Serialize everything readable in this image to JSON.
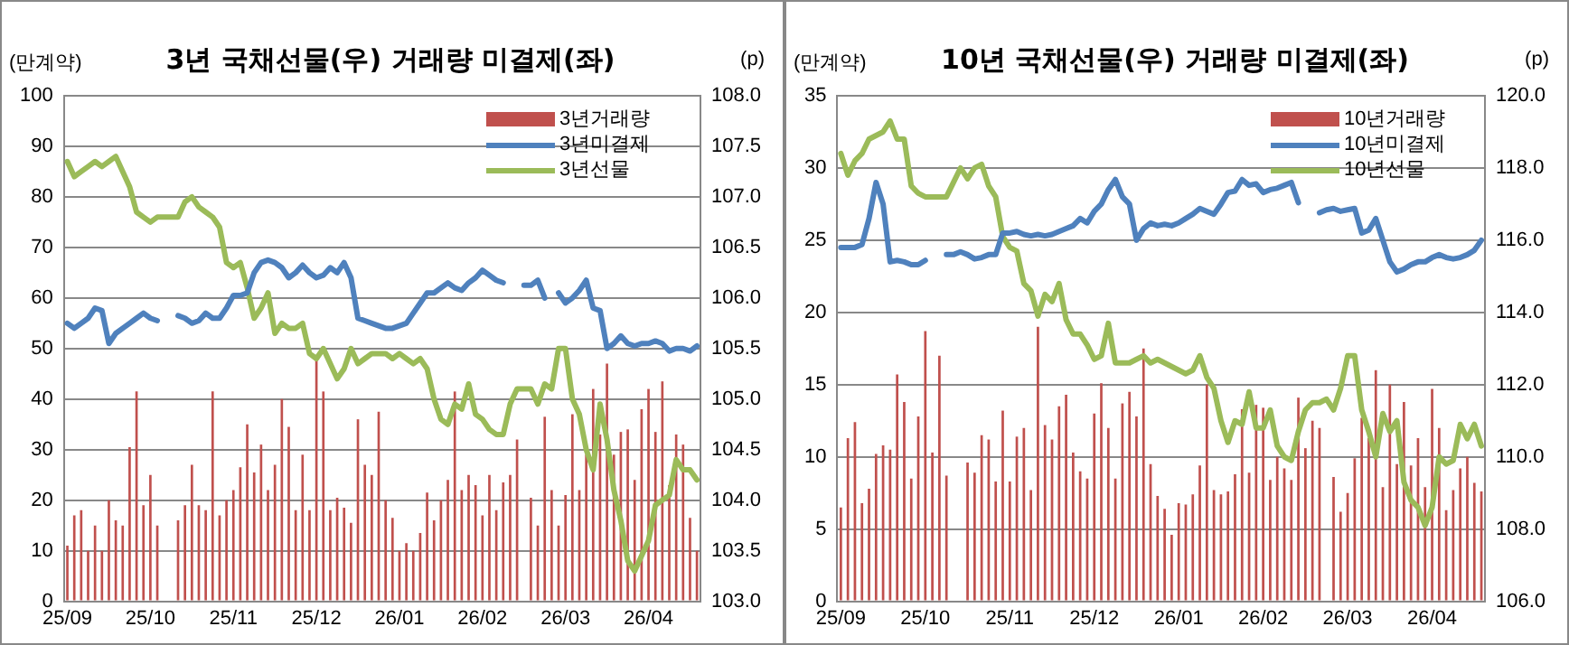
{
  "chart_data": [
    {
      "type": "bar",
      "title": "3년 국채선물(우) 거래량 미결제(좌)",
      "ylabel": "(만계약)",
      "y2label": "(p)",
      "categories": [
        "25/09",
        null,
        null,
        null,
        null,
        null,
        null,
        null,
        null,
        null,
        null,
        null,
        "25/10",
        null,
        null,
        null,
        null,
        null,
        null,
        null,
        null,
        null,
        null,
        null,
        "25/11",
        null,
        null,
        null,
        null,
        null,
        null,
        null,
        null,
        null,
        null,
        null,
        "25/12",
        null,
        null,
        null,
        null,
        null,
        null,
        null,
        null,
        null,
        null,
        null,
        "26/01",
        null,
        null,
        null,
        null,
        null,
        null,
        null,
        null,
        null,
        null,
        null,
        "26/02",
        null,
        null,
        null,
        null,
        null,
        null,
        null,
        null,
        null,
        null,
        null,
        "26/03",
        null,
        null,
        null,
        null,
        null,
        null,
        null,
        null,
        null,
        null,
        null,
        "26/04",
        null,
        null,
        null,
        null,
        null,
        null,
        null
      ],
      "series": [
        {
          "name": "3년거래량",
          "color": "#c0504d",
          "values": [
            11,
            17,
            18,
            10,
            15,
            10,
            20,
            16,
            15,
            30.5,
            41.5,
            19,
            25,
            15,
            0,
            0,
            16,
            19,
            27,
            19,
            18,
            41.5,
            17,
            20,
            22,
            26.5,
            35,
            25.5,
            31,
            22,
            27,
            40,
            34.5,
            18,
            29,
            18,
            48,
            41.5,
            18,
            20.5,
            18.5,
            15.5,
            36,
            27,
            25,
            37.5,
            20,
            16.5,
            10,
            11.5,
            10,
            13.5,
            21.5,
            16,
            20,
            24,
            41.5,
            22,
            25,
            23,
            17,
            25,
            18,
            23.5,
            25,
            32,
            0,
            20.5,
            15,
            36.5,
            22,
            15,
            21,
            37,
            22,
            29,
            42,
            33,
            47,
            29,
            33.5,
            34,
            24,
            38,
            42,
            33.5,
            43.5,
            23,
            33,
            31,
            16.5,
            10
          ]
        },
        {
          "name": "3년미결제",
          "type": "line",
          "color": "#4f81bd",
          "values": [
            55,
            54,
            55,
            56,
            58,
            57.5,
            51,
            53,
            54,
            55,
            56,
            57,
            56,
            55.5,
            null,
            null,
            56.5,
            56,
            55,
            55.5,
            57,
            56,
            56,
            58,
            60.5,
            60.5,
            61,
            65,
            67,
            67.5,
            67,
            66,
            64,
            65,
            66.5,
            65,
            64,
            64.5,
            66,
            65,
            67,
            64,
            56,
            55.5,
            55,
            54.5,
            54,
            54,
            54.5,
            55,
            57,
            59,
            61,
            61,
            62,
            63,
            62,
            61.5,
            63,
            64,
            65.5,
            64.5,
            63.5,
            63,
            null,
            null,
            62.5,
            62.5,
            63.5,
            60,
            null,
            61,
            59,
            60,
            61.5,
            63.5,
            58,
            57.5,
            50,
            51,
            52.5,
            51,
            50.5,
            51,
            51,
            51.5,
            51,
            49.5,
            50,
            50,
            49.5,
            50.5
          ]
        },
        {
          "name": "3년선물",
          "type": "line",
          "axis": "y2",
          "color": "#9bbb59",
          "values": [
            107.35,
            107.2,
            107.25,
            107.3,
            107.35,
            107.3,
            107.35,
            107.4,
            107.25,
            107.1,
            106.85,
            106.8,
            106.75,
            106.8,
            106.8,
            106.8,
            106.8,
            106.95,
            107.0,
            106.9,
            106.85,
            106.8,
            106.7,
            106.35,
            106.3,
            106.35,
            106.1,
            105.8,
            105.9,
            106.05,
            105.65,
            105.75,
            105.7,
            105.7,
            105.75,
            105.45,
            105.4,
            105.5,
            105.35,
            105.2,
            105.3,
            105.5,
            105.35,
            105.4,
            105.45,
            105.45,
            105.45,
            105.4,
            105.45,
            105.4,
            105.35,
            105.4,
            105.3,
            105.0,
            104.8,
            104.75,
            104.95,
            104.9,
            105.15,
            104.85,
            104.8,
            104.7,
            104.65,
            104.65,
            104.95,
            105.1,
            105.1,
            105.1,
            104.95,
            105.15,
            105.1,
            105.5,
            105.5,
            105.0,
            104.85,
            104.5,
            104.3,
            104.95,
            104.6,
            104.1,
            103.8,
            103.4,
            103.3,
            103.45,
            103.6,
            103.95,
            104.0,
            104.05,
            104.4,
            104.3,
            104.3,
            104.2
          ]
        }
      ],
      "ylim": [
        0,
        100
      ],
      "yticks": [
        0,
        10,
        20,
        30,
        40,
        50,
        60,
        70,
        80,
        90,
        100
      ],
      "y2lim": [
        103,
        108
      ],
      "y2ticks": [
        {
          "value": 103,
          "label": "103.0"
        },
        {
          "value": 103.5,
          "label": "103.5"
        },
        {
          "value": 104,
          "label": "104.0"
        },
        {
          "value": 104.5,
          "label": "104.5"
        },
        {
          "value": 105,
          "label": "105.0"
        },
        {
          "value": 105.5,
          "label": "105.5"
        },
        {
          "value": 106,
          "label": "106.0"
        },
        {
          "value": 106.5,
          "label": "106.5"
        },
        {
          "value": 107,
          "label": "107.0"
        },
        {
          "value": 107.5,
          "label": "107.5"
        },
        {
          "value": 108,
          "label": "108.0"
        }
      ],
      "grid": "y",
      "legend": "top right"
    },
    {
      "type": "bar",
      "title": "10년 국채선물(우) 거래량 미결제(좌)",
      "ylabel": "(만계약)",
      "y2label": "(p)",
      "categories": [
        "25/09",
        null,
        null,
        null,
        null,
        null,
        null,
        null,
        null,
        null,
        null,
        null,
        "25/10",
        null,
        null,
        null,
        null,
        null,
        null,
        null,
        null,
        null,
        null,
        null,
        "25/11",
        null,
        null,
        null,
        null,
        null,
        null,
        null,
        null,
        null,
        null,
        null,
        "25/12",
        null,
        null,
        null,
        null,
        null,
        null,
        null,
        null,
        null,
        null,
        null,
        "26/01",
        null,
        null,
        null,
        null,
        null,
        null,
        null,
        null,
        null,
        null,
        null,
        "26/02",
        null,
        null,
        null,
        null,
        null,
        null,
        null,
        null,
        null,
        null,
        null,
        "26/03",
        null,
        null,
        null,
        null,
        null,
        null,
        null,
        null,
        null,
        null,
        null,
        "26/04",
        null,
        null,
        null,
        null,
        null,
        null,
        null
      ],
      "series": [
        {
          "name": "10년거래량",
          "color": "#c0504d",
          "values": [
            6.5,
            11.3,
            12.4,
            6.8,
            7.8,
            10.2,
            10.8,
            10.5,
            15.7,
            13.8,
            8.5,
            12.8,
            18.7,
            10.3,
            17.0,
            8.7,
            0,
            0,
            9.6,
            8.9,
            11.5,
            11.2,
            8.3,
            13.2,
            8.3,
            11.4,
            12.0,
            7.7,
            19.0,
            12.2,
            11.2,
            13.5,
            14.3,
            10.3,
            9.0,
            8.5,
            13.0,
            15.1,
            12.0,
            8.5,
            13.7,
            14.5,
            12.8,
            17.5,
            9.5,
            7.3,
            6.4,
            4.6,
            6.8,
            6.7,
            7.4,
            9.4,
            15.0,
            7.7,
            7.4,
            7.6,
            8.8,
            13.3,
            8.9,
            13.6,
            13.4,
            8.4,
            10.0,
            9.2,
            8.4,
            14.1,
            10.6,
            12.5,
            12.0,
            0,
            8.6,
            6.2,
            7.5,
            9.9,
            12.7,
            11.3,
            16.0,
            7.9,
            15.0,
            9.5,
            13.8,
            9.4,
            11.3,
            7.9,
            14.7,
            12.0,
            6.3,
            7.7,
            9.2,
            10.0,
            8.2,
            7.6
          ]
        },
        {
          "name": "10년미결제",
          "type": "line",
          "color": "#4f81bd",
          "values": [
            24.5,
            24.5,
            24.5,
            24.7,
            26.5,
            29.0,
            27.5,
            23.5,
            23.6,
            23.5,
            23.3,
            23.3,
            23.6,
            null,
            null,
            24.0,
            24.0,
            24.2,
            24.0,
            23.7,
            23.8,
            24.0,
            24.0,
            25.5,
            25.5,
            25.6,
            25.4,
            25.3,
            25.4,
            25.3,
            25.4,
            25.6,
            25.8,
            26.0,
            26.5,
            26.2,
            27.0,
            27.5,
            28.5,
            29.2,
            28.0,
            27.5,
            25.0,
            25.8,
            26.2,
            26.0,
            26.1,
            26.0,
            26.2,
            26.5,
            26.8,
            27.2,
            27.0,
            26.8,
            27.5,
            28.3,
            28.4,
            29.2,
            28.8,
            28.9,
            28.3,
            28.5,
            28.6,
            28.8,
            29.0,
            27.6,
            null,
            null,
            26.9,
            27.1,
            27.2,
            27.0,
            27.1,
            27.2,
            25.5,
            25.7,
            26.5,
            25.0,
            23.5,
            22.8,
            23.0,
            23.3,
            23.5,
            23.5,
            23.8,
            24.0,
            23.8,
            23.7,
            23.8,
            24.0,
            24.3,
            25.0
          ]
        },
        {
          "name": "10년선물",
          "type": "line",
          "axis": "y2",
          "color": "#9bbb59",
          "values": [
            118.4,
            117.8,
            118.2,
            118.4,
            118.8,
            118.9,
            119.0,
            119.3,
            118.8,
            118.8,
            117.5,
            117.3,
            117.2,
            117.2,
            117.2,
            117.2,
            117.6,
            118.0,
            117.7,
            118.0,
            118.1,
            117.5,
            117.2,
            116.1,
            115.8,
            115.7,
            114.8,
            114.6,
            113.9,
            114.5,
            114.3,
            114.8,
            113.8,
            113.4,
            113.4,
            113.1,
            112.7,
            112.8,
            113.7,
            112.6,
            112.6,
            112.6,
            112.7,
            112.8,
            112.6,
            112.7,
            112.6,
            112.5,
            112.4,
            112.3,
            112.4,
            112.8,
            112.2,
            111.9,
            111.0,
            110.4,
            111.0,
            110.9,
            111.8,
            110.8,
            110.8,
            111.3,
            110.3,
            110.0,
            109.9,
            110.7,
            111.3,
            111.5,
            111.5,
            111.6,
            111.3,
            111.9,
            112.8,
            112.8,
            111.3,
            110.7,
            110.0,
            111.2,
            110.7,
            111.0,
            109.3,
            108.8,
            108.6,
            108.1,
            108.6,
            110.0,
            109.8,
            109.9,
            110.9,
            110.5,
            110.9,
            110.3
          ]
        }
      ],
      "ylim": [
        0,
        35
      ],
      "yticks": [
        0,
        5,
        10,
        15,
        20,
        25,
        30,
        35
      ],
      "y2lim": [
        106,
        120
      ],
      "y2ticks": [
        {
          "value": 106,
          "label": "106.0"
        },
        {
          "value": 108,
          "label": "108.0"
        },
        {
          "value": 110,
          "label": "110.0"
        },
        {
          "value": 112,
          "label": "112.0"
        },
        {
          "value": 114,
          "label": "114.0"
        },
        {
          "value": 116,
          "label": "116.0"
        },
        {
          "value": 118,
          "label": "118.0"
        },
        {
          "value": 120,
          "label": "120.0"
        }
      ],
      "grid": "y",
      "legend": "top right"
    }
  ]
}
